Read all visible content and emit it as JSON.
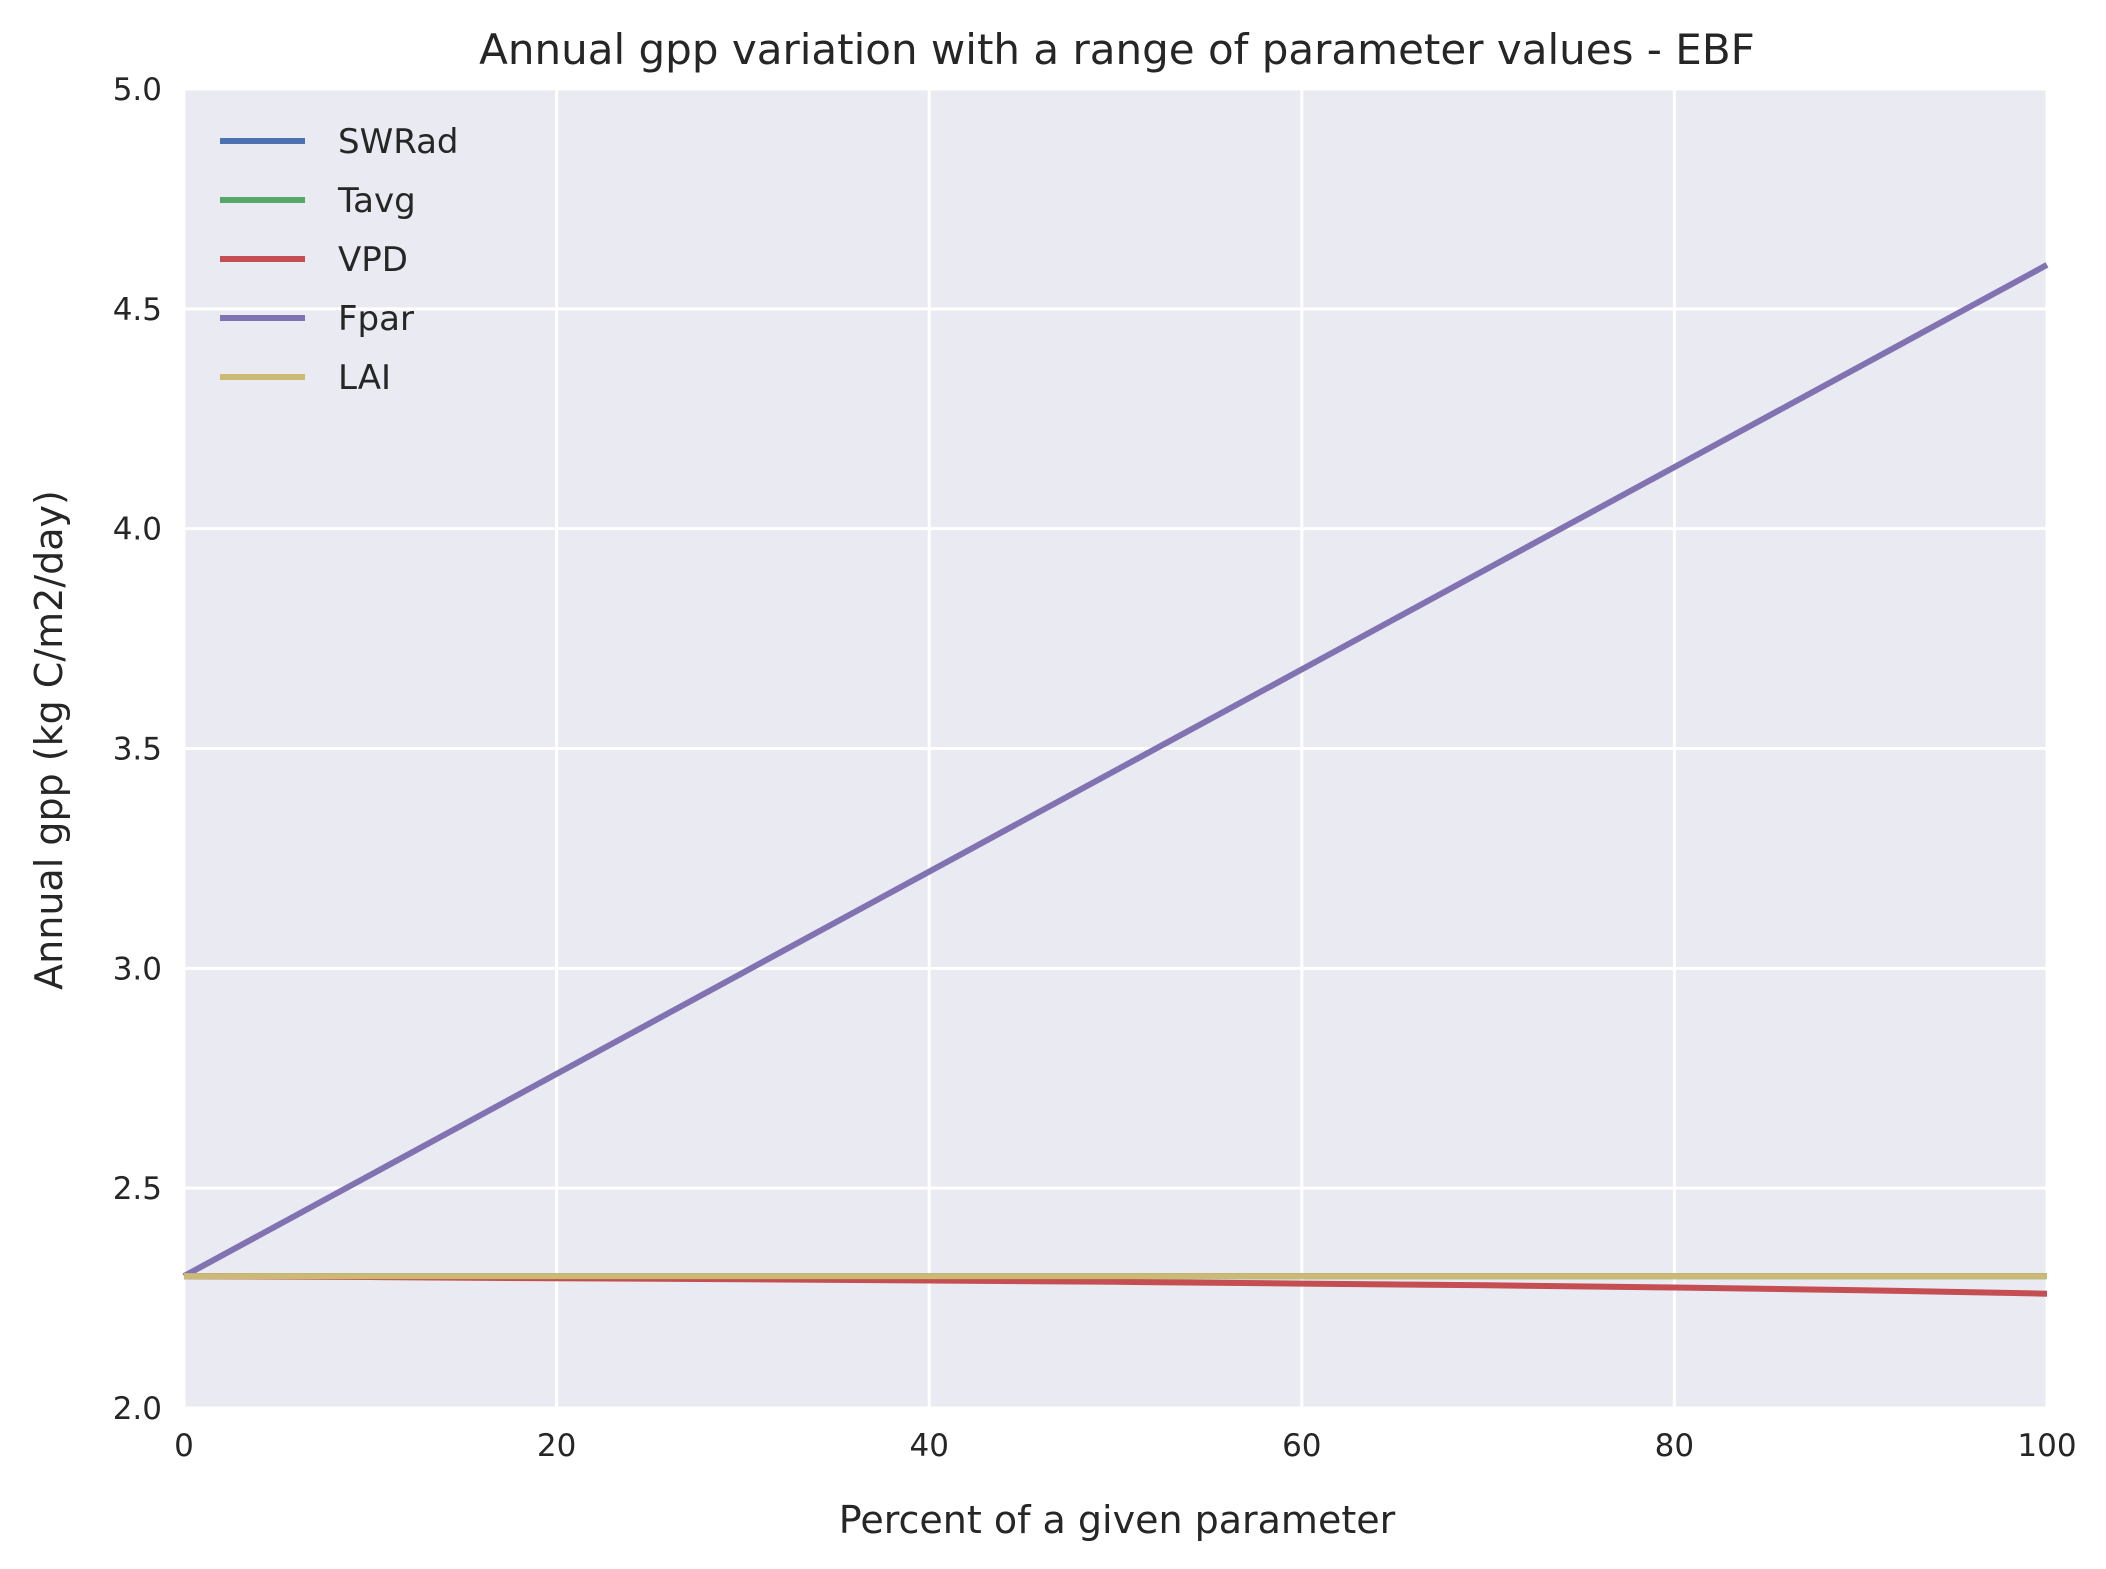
{
  "chart_data": {
    "type": "line",
    "title": "Annual gpp variation with a range of parameter values - EBF",
    "xlabel": "Percent of a given parameter",
    "ylabel": "Annual gpp (kg C/m2/day)",
    "xlim": [
      0,
      100
    ],
    "ylim": [
      2.0,
      5.0
    ],
    "x_ticks": [
      0,
      20,
      40,
      60,
      80,
      100
    ],
    "y_ticks": [
      2.0,
      2.5,
      3.0,
      3.5,
      4.0,
      4.5,
      5.0
    ],
    "x_tick_labels": [
      "0",
      "20",
      "40",
      "60",
      "80",
      "100"
    ],
    "y_tick_labels": [
      "2.0",
      "2.5",
      "3.0",
      "3.5",
      "4.0",
      "4.5",
      "5.0"
    ],
    "grid": true,
    "legend_position": "top-left",
    "background": "#eaeaf2",
    "x": [
      0,
      10,
      20,
      30,
      40,
      50,
      60,
      70,
      80,
      90,
      100
    ],
    "series": [
      {
        "name": "SWRad",
        "color": "#4c72b0",
        "values": [
          2.3,
          2.3,
          2.3,
          2.3,
          2.3,
          2.3,
          2.3,
          2.3,
          2.3,
          2.3,
          2.3
        ]
      },
      {
        "name": "Tavg",
        "color": "#55a868",
        "values": [
          2.3,
          2.3,
          2.3,
          2.3,
          2.3,
          2.3,
          2.3,
          2.3,
          2.3,
          2.3,
          2.3
        ]
      },
      {
        "name": "VPD",
        "color": "#c44e52",
        "values": [
          2.3,
          2.298,
          2.295,
          2.293,
          2.29,
          2.287,
          2.283,
          2.279,
          2.274,
          2.268,
          2.26
        ]
      },
      {
        "name": "Fpar",
        "color": "#8172b2",
        "values": [
          2.3,
          2.53,
          2.76,
          2.99,
          3.22,
          3.45,
          3.68,
          3.91,
          4.14,
          4.37,
          4.6
        ]
      },
      {
        "name": "LAI",
        "color": "#ccb974",
        "values": [
          2.3,
          2.3,
          2.3,
          2.3,
          2.3,
          2.3,
          2.3,
          2.3,
          2.3,
          2.3,
          2.3
        ]
      }
    ]
  }
}
